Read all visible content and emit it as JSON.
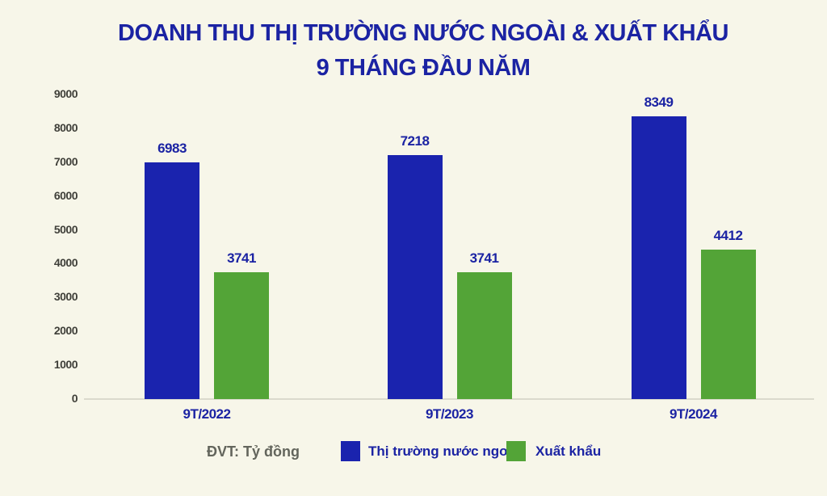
{
  "title": {
    "line1": "DOANH THU THỊ TRƯỜNG NƯỚC NGOÀI & XUẤT KHẨU",
    "line2": "9 THÁNG ĐẦU NĂM"
  },
  "unit_note": "ĐVT: Tỷ đồng",
  "chart_data": {
    "type": "bar",
    "title": "DOANH THU THỊ TRƯỜNG NƯỚC NGOÀI & XUẤT KHẨU 9 THÁNG ĐẦU NĂM",
    "unit": "Tỷ đồng",
    "categories": [
      "9T/2022",
      "9T/2023",
      "9T/2024"
    ],
    "series": [
      {
        "name": "Thị trường nước ngoài",
        "color": "#1A23AE",
        "values": [
          6983,
          7218,
          8349
        ]
      },
      {
        "name": "Xuất khẩu",
        "color": "#53A437",
        "values": [
          3741,
          3741,
          4412
        ]
      }
    ],
    "xlabel": "",
    "ylabel": "",
    "ylim": [
      0,
      9000
    ],
    "ytick_step": 1000,
    "grid": false,
    "legend_position": "bottom",
    "data_labels": true
  },
  "colors": {
    "background": "#F7F6E9",
    "title_text": "#1B23A3",
    "bar_blue": "#1A23AE",
    "bar_green": "#53A437",
    "axis_label": "#3F3F39",
    "axis_line": "#DBDACD",
    "unit_text": "#63655C"
  }
}
